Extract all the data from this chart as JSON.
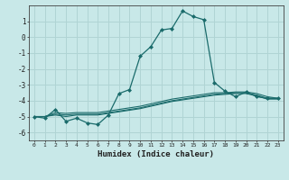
{
  "xlabel": "Humidex (Indice chaleur)",
  "bg_color": "#c8e8e8",
  "grid_color": "#b0d4d4",
  "line_color": "#1a6b6b",
  "xlim": [
    -0.5,
    23.5
  ],
  "ylim": [
    -6.5,
    2.0
  ],
  "yticks": [
    1,
    0,
    -1,
    -2,
    -3,
    -4,
    -5,
    -6
  ],
  "xticks": [
    0,
    1,
    2,
    3,
    4,
    5,
    6,
    7,
    8,
    9,
    10,
    11,
    12,
    13,
    14,
    15,
    16,
    17,
    18,
    19,
    20,
    21,
    22,
    23
  ],
  "series1_x": [
    0,
    1,
    2,
    3,
    4,
    5,
    6,
    7,
    8,
    9,
    10,
    11,
    12,
    13,
    14,
    15,
    16,
    17,
    18,
    19,
    20,
    21,
    22,
    23
  ],
  "series1_y": [
    -5.0,
    -5.1,
    -4.55,
    -5.3,
    -5.1,
    -5.4,
    -5.5,
    -4.9,
    -3.55,
    -3.3,
    -1.2,
    -0.6,
    0.45,
    0.55,
    1.65,
    1.3,
    1.1,
    -2.85,
    -3.4,
    -3.75,
    -3.45,
    -3.75,
    -3.85,
    -3.85
  ],
  "series2_x": [
    0,
    1,
    2,
    3,
    4,
    5,
    6,
    7,
    8,
    9,
    10,
    11,
    12,
    13,
    14,
    15,
    16,
    17,
    18,
    19,
    20,
    21,
    22,
    23
  ],
  "series2_y": [
    -5.0,
    -5.0,
    -4.75,
    -4.8,
    -4.75,
    -4.75,
    -4.75,
    -4.65,
    -4.55,
    -4.45,
    -4.35,
    -4.2,
    -4.05,
    -3.9,
    -3.8,
    -3.7,
    -3.6,
    -3.5,
    -3.5,
    -3.45,
    -3.45,
    -3.55,
    -3.75,
    -3.85
  ],
  "series3_x": [
    0,
    1,
    2,
    3,
    4,
    5,
    6,
    7,
    8,
    9,
    10,
    11,
    12,
    13,
    14,
    15,
    16,
    17,
    18,
    19,
    20,
    21,
    22,
    23
  ],
  "series3_y": [
    -5.0,
    -5.0,
    -4.85,
    -4.9,
    -4.85,
    -4.85,
    -4.85,
    -4.75,
    -4.65,
    -4.55,
    -4.45,
    -4.3,
    -4.15,
    -4.0,
    -3.9,
    -3.8,
    -3.7,
    -3.6,
    -3.55,
    -3.5,
    -3.5,
    -3.65,
    -3.85,
    -3.85
  ],
  "series4_x": [
    0,
    1,
    2,
    3,
    4,
    5,
    6,
    7,
    8,
    9,
    10,
    11,
    12,
    13,
    14,
    15,
    16,
    17,
    18,
    19,
    20,
    21,
    22,
    23
  ],
  "series4_y": [
    -5.0,
    -5.0,
    -4.9,
    -5.0,
    -4.9,
    -4.9,
    -4.9,
    -4.8,
    -4.7,
    -4.6,
    -4.5,
    -4.35,
    -4.2,
    -4.05,
    -3.95,
    -3.85,
    -3.75,
    -3.65,
    -3.6,
    -3.55,
    -3.55,
    -3.7,
    -3.9,
    -3.9
  ]
}
